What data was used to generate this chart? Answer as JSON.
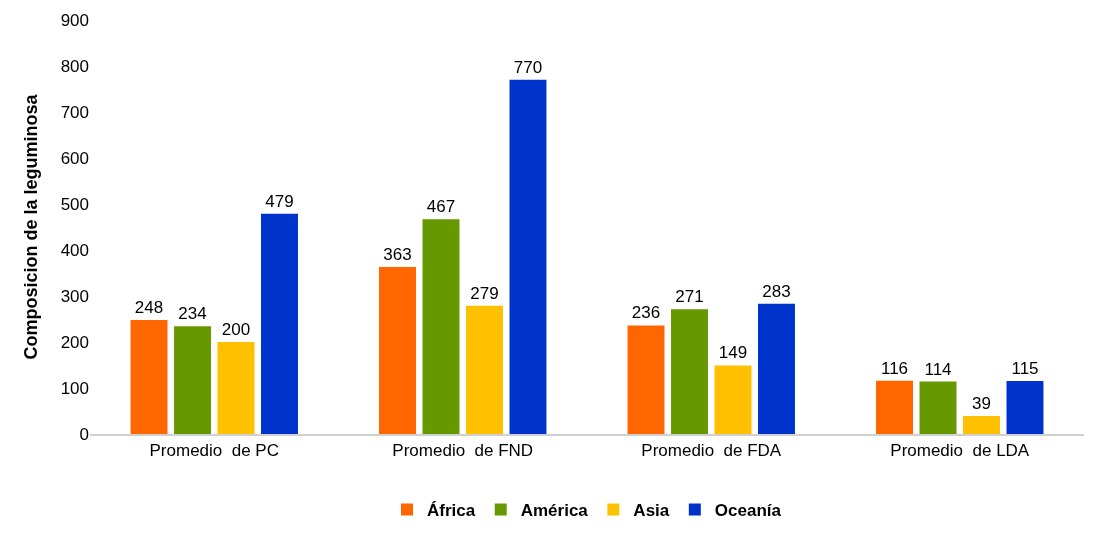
{
  "chart_data": {
    "type": "bar",
    "ylabel": "Composicion de la leguminosa",
    "categories": [
      "Promedio  de PC",
      "Promedio  de FND",
      "Promedio  de FDA",
      "Promedio  de LDA"
    ],
    "series": [
      {
        "name": "África",
        "color": "#ff6600",
        "values": [
          248,
          363,
          236,
          116
        ]
      },
      {
        "name": "América",
        "color": "#669900",
        "values": [
          234,
          467,
          271,
          114
        ]
      },
      {
        "name": "Asia",
        "color": "#ffc000",
        "values": [
          200,
          279,
          149,
          39
        ]
      },
      {
        "name": "Oceanía",
        "color": "#0033cc",
        "values": [
          479,
          770,
          283,
          115
        ]
      }
    ],
    "ylim": [
      0,
      900
    ],
    "yticks": [
      0,
      100,
      200,
      300,
      400,
      500,
      600,
      700,
      800,
      900
    ],
    "grid": false,
    "legend": "bottom",
    "data_labels": true
  }
}
